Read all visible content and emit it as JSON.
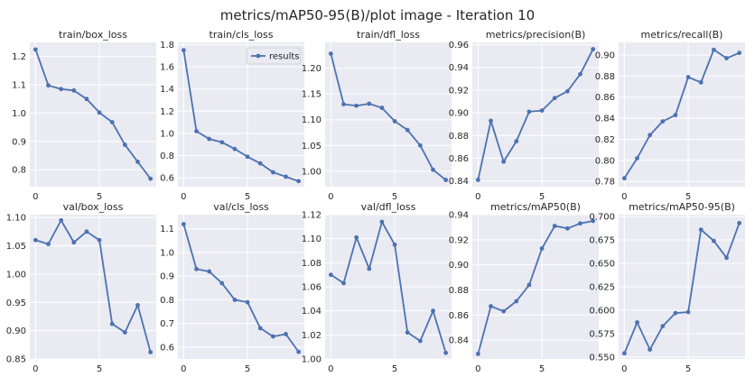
{
  "figure": {
    "title": "metrics/mAP50-95(B)/plot image - Iteration 10"
  },
  "colors": {
    "line": "#4c72b0",
    "panel": "#eaeaf2",
    "grid": "#ffffff"
  },
  "chart_data": [
    {
      "type": "line",
      "title": "train/box_loss",
      "x": [
        0,
        1,
        2,
        3,
        4,
        5,
        6,
        7,
        8,
        9
      ],
      "values": [
        1.225,
        1.098,
        1.085,
        1.08,
        1.05,
        1.002,
        0.968,
        0.888,
        0.828,
        0.768
      ],
      "ylim": [
        0.74,
        1.25
      ],
      "yticks": [
        0.8,
        0.9,
        1.0,
        1.1,
        1.2
      ],
      "ytick_labels": [
        "0.8",
        "0.9",
        "1.0",
        "1.1",
        "1.2"
      ],
      "xticks": [
        0,
        5
      ],
      "xtick_labels": [
        "0",
        "5"
      ],
      "legend": null
    },
    {
      "type": "line",
      "title": "train/cls_loss",
      "x": [
        0,
        1,
        2,
        3,
        4,
        5,
        6,
        7,
        8,
        9
      ],
      "values": [
        1.75,
        1.02,
        0.95,
        0.92,
        0.86,
        0.79,
        0.73,
        0.65,
        0.61,
        0.57
      ],
      "ylim": [
        0.52,
        1.82
      ],
      "yticks": [
        0.6,
        0.8,
        1.0,
        1.2,
        1.4,
        1.6,
        1.8
      ],
      "ytick_labels": [
        "0.6",
        "0.8",
        "1.0",
        "1.2",
        "1.4",
        "1.6",
        "1.8"
      ],
      "xticks": [
        0,
        5
      ],
      "xtick_labels": [
        "0",
        "5"
      ],
      "legend": {
        "label": "results",
        "position": "top-right"
      }
    },
    {
      "type": "line",
      "title": "train/dfl_loss",
      "x": [
        0,
        1,
        2,
        3,
        4,
        5,
        6,
        7,
        8,
        9
      ],
      "values": [
        1.228,
        1.13,
        1.127,
        1.131,
        1.123,
        1.097,
        1.08,
        1.05,
        1.003,
        0.983
      ],
      "ylim": [
        0.97,
        1.25
      ],
      "yticks": [
        1.0,
        1.05,
        1.1,
        1.15,
        1.2
      ],
      "ytick_labels": [
        "1.00",
        "1.05",
        "1.10",
        "1.15",
        "1.20"
      ],
      "xticks": [
        0,
        5
      ],
      "xtick_labels": [
        "0",
        "5"
      ],
      "legend": null
    },
    {
      "type": "line",
      "title": "metrics/precision(B)",
      "x": [
        0,
        1,
        2,
        3,
        4,
        5,
        6,
        7,
        8,
        9
      ],
      "values": [
        0.841,
        0.893,
        0.857,
        0.875,
        0.901,
        0.902,
        0.913,
        0.919,
        0.934,
        0.956
      ],
      "ylim": [
        0.835,
        0.962
      ],
      "yticks": [
        0.84,
        0.86,
        0.88,
        0.9,
        0.92,
        0.94,
        0.96
      ],
      "ytick_labels": [
        "0.84",
        "0.86",
        "0.88",
        "0.90",
        "0.92",
        "0.94",
        "0.96"
      ],
      "xticks": [
        0,
        5
      ],
      "xtick_labels": [
        "0",
        "5"
      ],
      "legend": null
    },
    {
      "type": "line",
      "title": "metrics/recall(B)",
      "x": [
        0,
        1,
        2,
        3,
        4,
        5,
        6,
        7,
        8,
        9
      ],
      "values": [
        0.783,
        0.802,
        0.824,
        0.837,
        0.843,
        0.879,
        0.874,
        0.905,
        0.897,
        0.902
      ],
      "ylim": [
        0.775,
        0.912
      ],
      "yticks": [
        0.78,
        0.8,
        0.82,
        0.84,
        0.86,
        0.88,
        0.9
      ],
      "ytick_labels": [
        "0.78",
        "0.80",
        "0.82",
        "0.84",
        "0.86",
        "0.88",
        "0.90"
      ],
      "xticks": [
        0,
        5
      ],
      "xtick_labels": [
        "0",
        "5"
      ],
      "legend": null
    },
    {
      "type": "line",
      "title": "val/box_loss",
      "x": [
        0,
        1,
        2,
        3,
        4,
        5,
        6,
        7,
        8,
        9
      ],
      "values": [
        1.06,
        1.053,
        1.095,
        1.056,
        1.075,
        1.06,
        0.912,
        0.897,
        0.945,
        0.862
      ],
      "ylim": [
        0.85,
        1.105
      ],
      "yticks": [
        0.85,
        0.9,
        0.95,
        1.0,
        1.05,
        1.1
      ],
      "ytick_labels": [
        "0.85",
        "0.90",
        "0.95",
        "1.00",
        "1.05",
        "1.10"
      ],
      "xticks": [
        0,
        5
      ],
      "xtick_labels": [
        "0",
        "5"
      ],
      "legend": null
    },
    {
      "type": "line",
      "title": "val/cls_loss",
      "x": [
        0,
        1,
        2,
        3,
        4,
        5,
        6,
        7,
        8,
        9
      ],
      "values": [
        1.12,
        0.93,
        0.92,
        0.87,
        0.8,
        0.79,
        0.68,
        0.645,
        0.655,
        0.58
      ],
      "ylim": [
        0.55,
        1.16
      ],
      "yticks": [
        0.6,
        0.7,
        0.8,
        0.9,
        1.0,
        1.1
      ],
      "ytick_labels": [
        "0.6",
        "0.7",
        "0.8",
        "0.9",
        "1.0",
        "1.1"
      ],
      "xticks": [
        0,
        5
      ],
      "xtick_labels": [
        "0",
        "5"
      ],
      "legend": null
    },
    {
      "type": "line",
      "title": "val/dfl_loss",
      "x": [
        0,
        1,
        2,
        3,
        4,
        5,
        6,
        7,
        8,
        9
      ],
      "values": [
        1.07,
        1.063,
        1.101,
        1.075,
        1.114,
        1.095,
        1.022,
        1.015,
        1.04,
        1.005
      ],
      "ylim": [
        1.0,
        1.12
      ],
      "yticks": [
        1.0,
        1.02,
        1.04,
        1.06,
        1.08,
        1.1,
        1.12
      ],
      "ytick_labels": [
        "1.00",
        "1.02",
        "1.04",
        "1.06",
        "1.08",
        "1.10",
        "1.12"
      ],
      "xticks": [
        0,
        5
      ],
      "xtick_labels": [
        "0",
        "5"
      ],
      "legend": null
    },
    {
      "type": "line",
      "title": "metrics/mAP50(B)",
      "x": [
        0,
        1,
        2,
        3,
        4,
        5,
        6,
        7,
        8,
        9
      ],
      "values": [
        0.829,
        0.867,
        0.863,
        0.871,
        0.884,
        0.913,
        0.931,
        0.929,
        0.933,
        0.935
      ],
      "ylim": [
        0.825,
        0.94
      ],
      "yticks": [
        0.84,
        0.86,
        0.88,
        0.9,
        0.92,
        0.94
      ],
      "ytick_labels": [
        "0.84",
        "0.86",
        "0.88",
        "0.90",
        "0.92",
        "0.94"
      ],
      "xticks": [
        0,
        5
      ],
      "xtick_labels": [
        "0",
        "5"
      ],
      "legend": null
    },
    {
      "type": "line",
      "title": "metrics/mAP50-95(B)",
      "x": [
        0,
        1,
        2,
        3,
        4,
        5,
        6,
        7,
        8,
        9
      ],
      "values": [
        0.554,
        0.587,
        0.558,
        0.583,
        0.597,
        0.598,
        0.686,
        0.674,
        0.656,
        0.693
      ],
      "ylim": [
        0.548,
        0.702
      ],
      "yticks": [
        0.55,
        0.575,
        0.6,
        0.625,
        0.65,
        0.675,
        0.7
      ],
      "ytick_labels": [
        "0.550",
        "0.575",
        "0.600",
        "0.625",
        "0.650",
        "0.675",
        "0.700"
      ],
      "xticks": [
        0,
        5
      ],
      "xtick_labels": [
        "0",
        "5"
      ],
      "legend": null
    }
  ]
}
